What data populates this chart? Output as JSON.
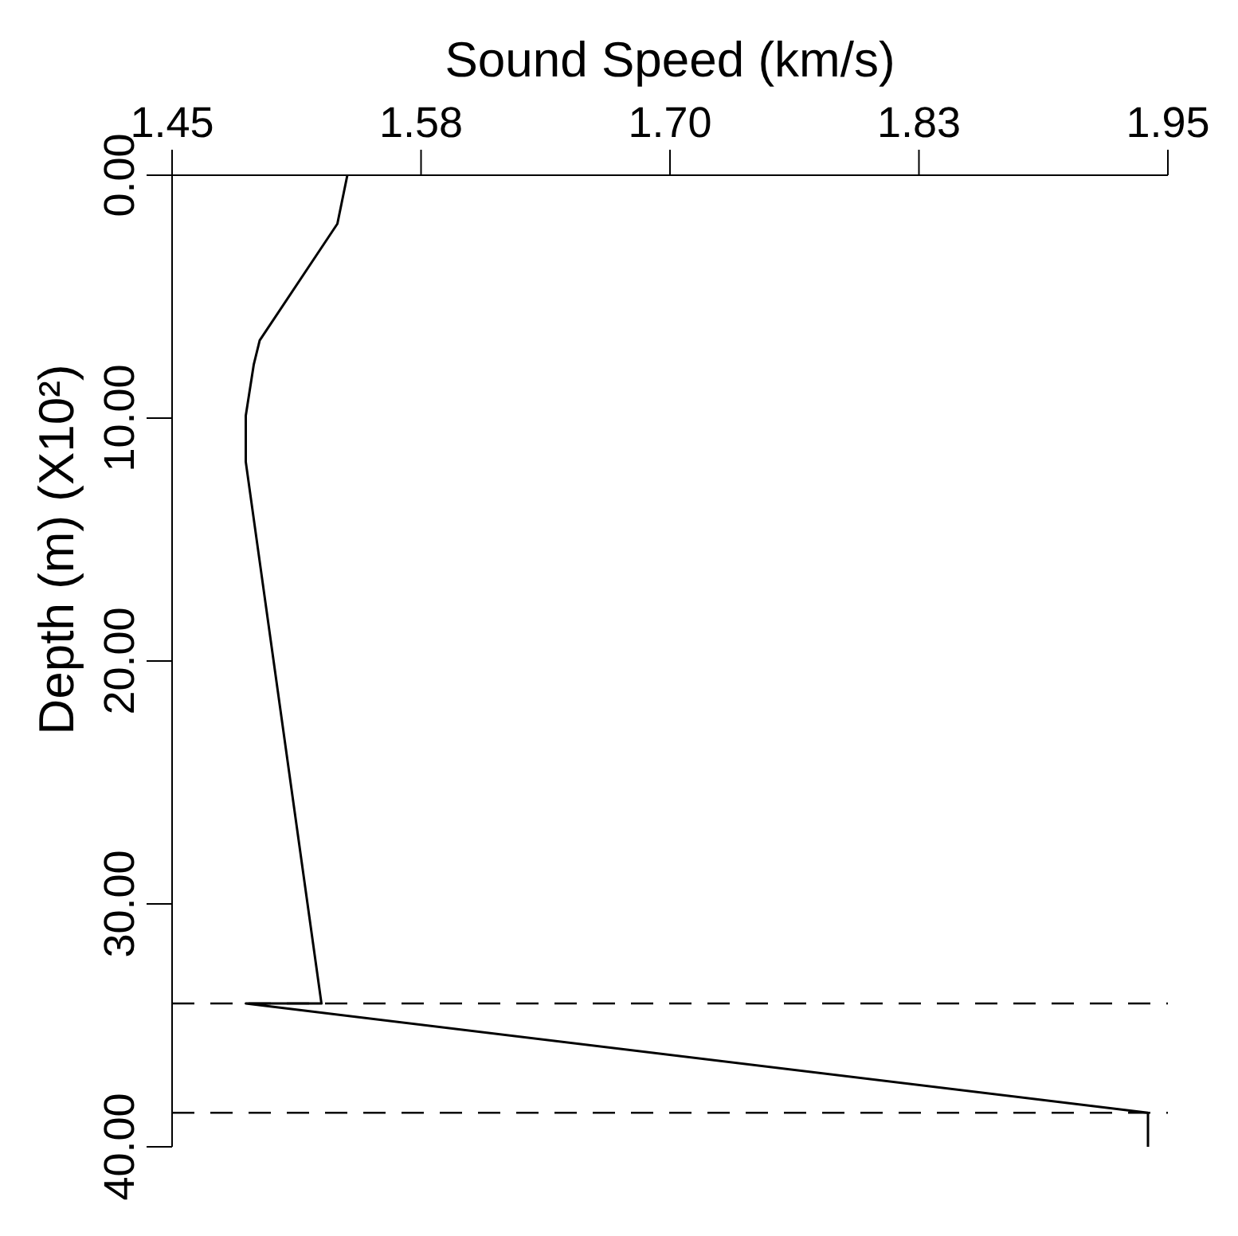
{
  "chart_data": {
    "type": "line",
    "xlabel": "Sound Speed (km/s)",
    "ylabel": "Depth (m) (X10²)",
    "xlim": [
      1.45,
      1.95
    ],
    "ylim": [
      40,
      0
    ],
    "xticks": [
      {
        "value": 1.45,
        "label": "1.45"
      },
      {
        "value": 1.575,
        "label": "1.58"
      },
      {
        "value": 1.7,
        "label": "1.70"
      },
      {
        "value": 1.825,
        "label": "1.83"
      },
      {
        "value": 1.95,
        "label": "1.95"
      }
    ],
    "yticks": [
      {
        "value": 0,
        "label": "0.00"
      },
      {
        "value": 10,
        "label": "10.00"
      },
      {
        "value": 20,
        "label": "20.00"
      },
      {
        "value": 30,
        "label": "30.00"
      },
      {
        "value": 40,
        "label": "40.00"
      }
    ],
    "series": [
      {
        "color": "#000000",
        "x": [
          1.538,
          1.533,
          1.494,
          1.491,
          1.487,
          1.487,
          1.525,
          1.487,
          1.94,
          1.94
        ],
        "values": [
          0,
          2.0,
          6.8,
          7.8,
          9.9,
          11.8,
          34.1,
          34.1,
          38.6,
          40
        ]
      }
    ],
    "ref_lines": [
      {
        "axis": "y",
        "value": 34.1,
        "color": "#000000",
        "line_style": "dashed"
      },
      {
        "axis": "y",
        "value": 38.6,
        "color": "#000000",
        "line_style": "dashed"
      }
    ],
    "marker": "none",
    "line_style": "solid"
  }
}
